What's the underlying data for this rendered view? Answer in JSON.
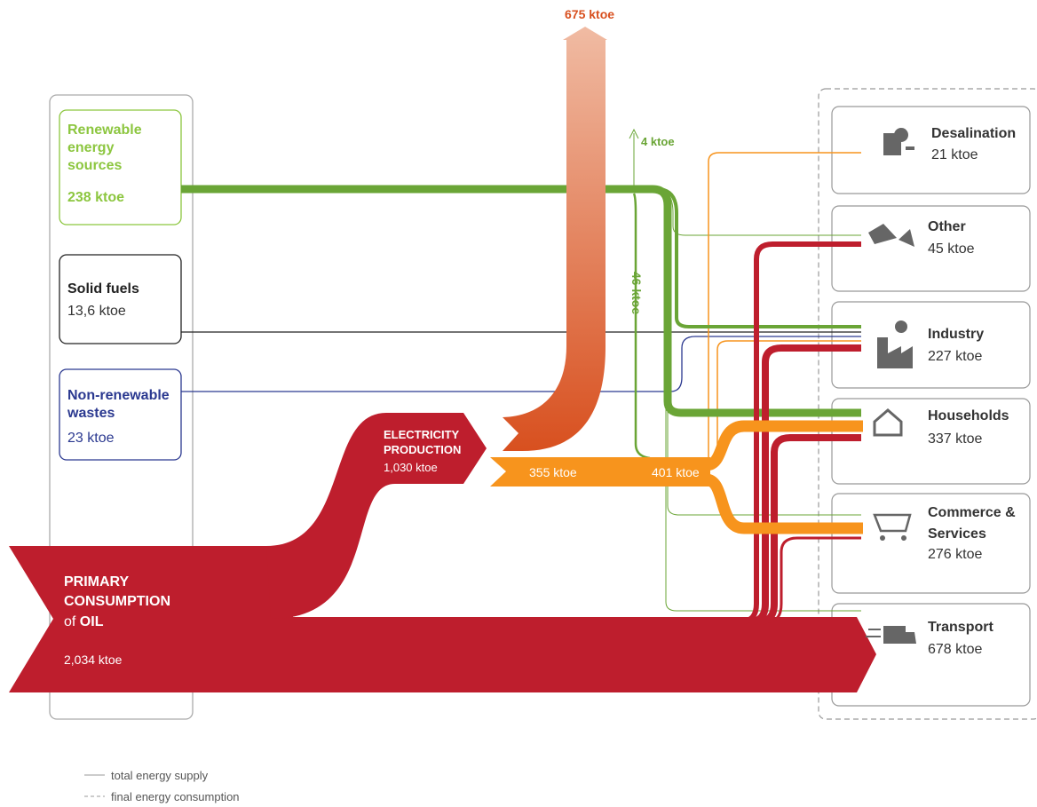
{
  "sources": [
    {
      "label": "Renewable energy sources",
      "value": "238 ktoe"
    },
    {
      "label": "Solid fuels",
      "value": "13,6 ktoe"
    },
    {
      "label": "Non-renewable wastes",
      "value": "23 ktoe"
    }
  ],
  "primary": {
    "label": "PRIMARY CONSUMPTION",
    "connector": "of",
    "fuel": "OIL",
    "value": "2,034 ktoe"
  },
  "electricity": {
    "label": "ELECTRICITY PRODUCTION",
    "value": "1,030 ktoe"
  },
  "flows": {
    "losses": "675 ktoe",
    "renewable_losses": "4 ktoe",
    "renewable_to_electricity": "46 ktoe",
    "electricity_out": "355 ktoe",
    "electricity_total": "401 ktoe"
  },
  "sectors": [
    {
      "name": "Desalination",
      "value": "21 ktoe"
    },
    {
      "name": "Other",
      "value": "45 ktoe"
    },
    {
      "name": "Industry",
      "value": "227 ktoe"
    },
    {
      "name": "Households",
      "value": "337 ktoe"
    },
    {
      "name": "Commerce & Services",
      "value": "276 ktoe"
    },
    {
      "name": "Transport",
      "value": "678 ktoe"
    }
  ],
  "legend": [
    {
      "label": "total energy supply"
    },
    {
      "label": "final energy consumption"
    }
  ]
}
